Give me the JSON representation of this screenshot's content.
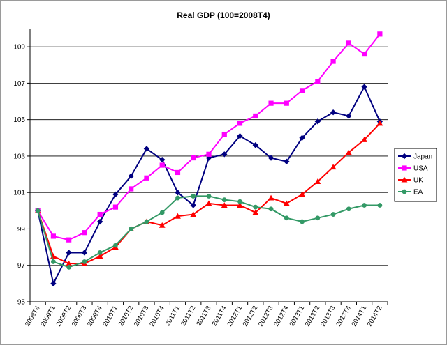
{
  "chart_data": {
    "type": "line",
    "title": "Real GDP (100=2008T4)",
    "xlabel": "",
    "ylabel": "",
    "ylim": [
      95,
      110
    ],
    "yticks": [
      95,
      97,
      99,
      101,
      103,
      105,
      107,
      109
    ],
    "grid": "horizontal",
    "legend_position": "right",
    "categories": [
      "2008T4",
      "2009T1",
      "2009T2",
      "2009T3",
      "2009T4",
      "2010T1",
      "2010T2",
      "2010T3",
      "2010T4",
      "2011T1",
      "2011T2",
      "2011T3",
      "2011T4",
      "2012T1",
      "2012T2",
      "2012T3",
      "2012T4",
      "2013T1",
      "2013T2",
      "2013T3",
      "2013T4",
      "2014T1",
      "2014T2"
    ],
    "x_tick_labels": [
      "2008T4",
      "2009T1",
      "2009T2",
      "2009T3",
      "2009T4",
      "2010T1",
      "2010T2",
      "2010T3",
      "2010T4",
      "2011T1",
      "2011T2",
      "2011T3",
      "2011T4",
      "2012T1",
      "2012T2",
      "2012T3",
      "2012T4",
      "2013T1",
      "2013T2",
      "2013T3",
      "2013T4",
      "2014T1",
      "2014T2"
    ],
    "series": [
      {
        "name": "Japan",
        "color": "#000080",
        "marker": "diamond",
        "values": [
          100.0,
          96.0,
          97.7,
          97.7,
          99.4,
          100.9,
          101.9,
          103.4,
          102.8,
          101.0,
          100.3,
          102.9,
          103.1,
          104.1,
          103.6,
          102.9,
          102.7,
          104.0,
          104.9,
          105.4,
          105.2,
          106.8,
          104.9
        ]
      },
      {
        "name": "USA",
        "color": "#FF00FF",
        "marker": "square",
        "values": [
          100.0,
          98.6,
          98.4,
          98.8,
          99.8,
          100.2,
          101.2,
          101.8,
          102.5,
          102.1,
          102.9,
          103.1,
          104.2,
          104.8,
          105.2,
          105.9,
          105.9,
          106.6,
          107.1,
          108.2,
          109.2,
          108.6,
          109.7
        ]
      },
      {
        "name": "UK",
        "color": "#FF0000",
        "marker": "triangle",
        "values": [
          100.0,
          97.5,
          97.1,
          97.1,
          97.5,
          98.0,
          99.0,
          99.4,
          99.2,
          99.7,
          99.8,
          100.4,
          100.3,
          100.3,
          99.9,
          100.7,
          100.4,
          100.9,
          101.6,
          102.4,
          103.2,
          103.9,
          104.8
        ]
      },
      {
        "name": "EA",
        "color": "#339966",
        "marker": "circle",
        "values": [
          100.0,
          97.2,
          96.9,
          97.2,
          97.7,
          98.1,
          99.0,
          99.4,
          99.9,
          100.7,
          100.8,
          100.8,
          100.6,
          100.5,
          100.2,
          100.1,
          99.6,
          99.4,
          99.6,
          99.8,
          100.1,
          100.3,
          100.3
        ]
      }
    ]
  }
}
